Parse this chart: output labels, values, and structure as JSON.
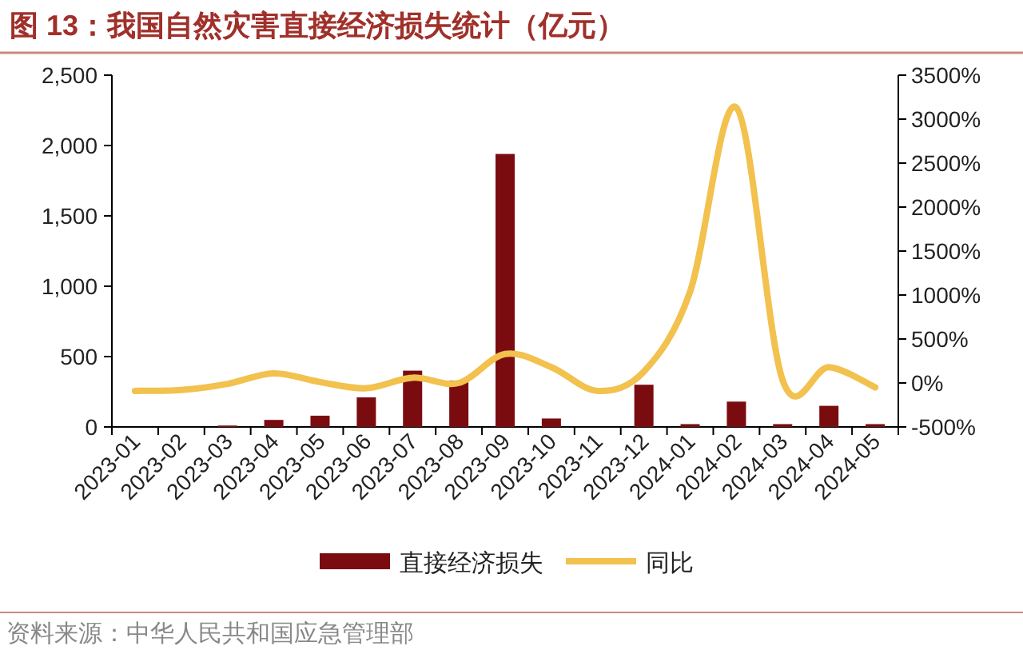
{
  "chart_data": {
    "type": "bar",
    "title": "图 13：我国自然灾害直接经济损失统计（亿元）",
    "categories": [
      "2023-01",
      "2023-02",
      "2023-03",
      "2023-04",
      "2023-05",
      "2023-06",
      "2023-07",
      "2023-08",
      "2023-09",
      "2023-10",
      "2023-11",
      "2023-12",
      "2024-01",
      "2024-02",
      "2024-03",
      "2024-04",
      "2024-05"
    ],
    "series": [
      {
        "name": "直接经济损失",
        "color": "#7a0c10",
        "values": [
          0,
          0,
          10,
          50,
          80,
          210,
          400,
          330,
          1940,
          60,
          0,
          300,
          20,
          180,
          20,
          150,
          20
        ]
      },
      {
        "name": "同比",
        "type": "line",
        "axis": "y2",
        "color": "#f2c14e",
        "values": [
          -90,
          -80,
          -10,
          110,
          10,
          -60,
          60,
          0,
          330,
          180,
          -90,
          130,
          1040,
          3130,
          30,
          180,
          -50
        ]
      }
    ],
    "ylim": [
      0,
      2500
    ],
    "yticks": [
      0,
      {
        "value": 500,
        "label": "500"
      },
      {
        "value": 1000,
        "label": "1,000"
      },
      {
        "value": 1500,
        "label": "1,500"
      },
      {
        "value": 2000,
        "label": "2,000"
      },
      {
        "value": 2500,
        "label": "2,500"
      }
    ],
    "y2lim": [
      -500,
      3500
    ],
    "y2ticks": [
      {
        "value": -500,
        "label": "-500%"
      },
      {
        "value": 0,
        "label": "0%"
      },
      {
        "value": 500,
        "label": "500%"
      },
      {
        "value": 1000,
        "label": "1000%"
      },
      {
        "value": 1500,
        "label": "1500%"
      },
      {
        "value": 2000,
        "label": "2000%"
      },
      {
        "value": 2500,
        "label": "2500%"
      },
      {
        "value": 3000,
        "label": "3000%"
      },
      {
        "value": 3500,
        "label": "3500%"
      }
    ],
    "grid": false,
    "legend": "bottom",
    "annotations": [
      "资料来源：中华人民共和国应急管理部"
    ]
  }
}
